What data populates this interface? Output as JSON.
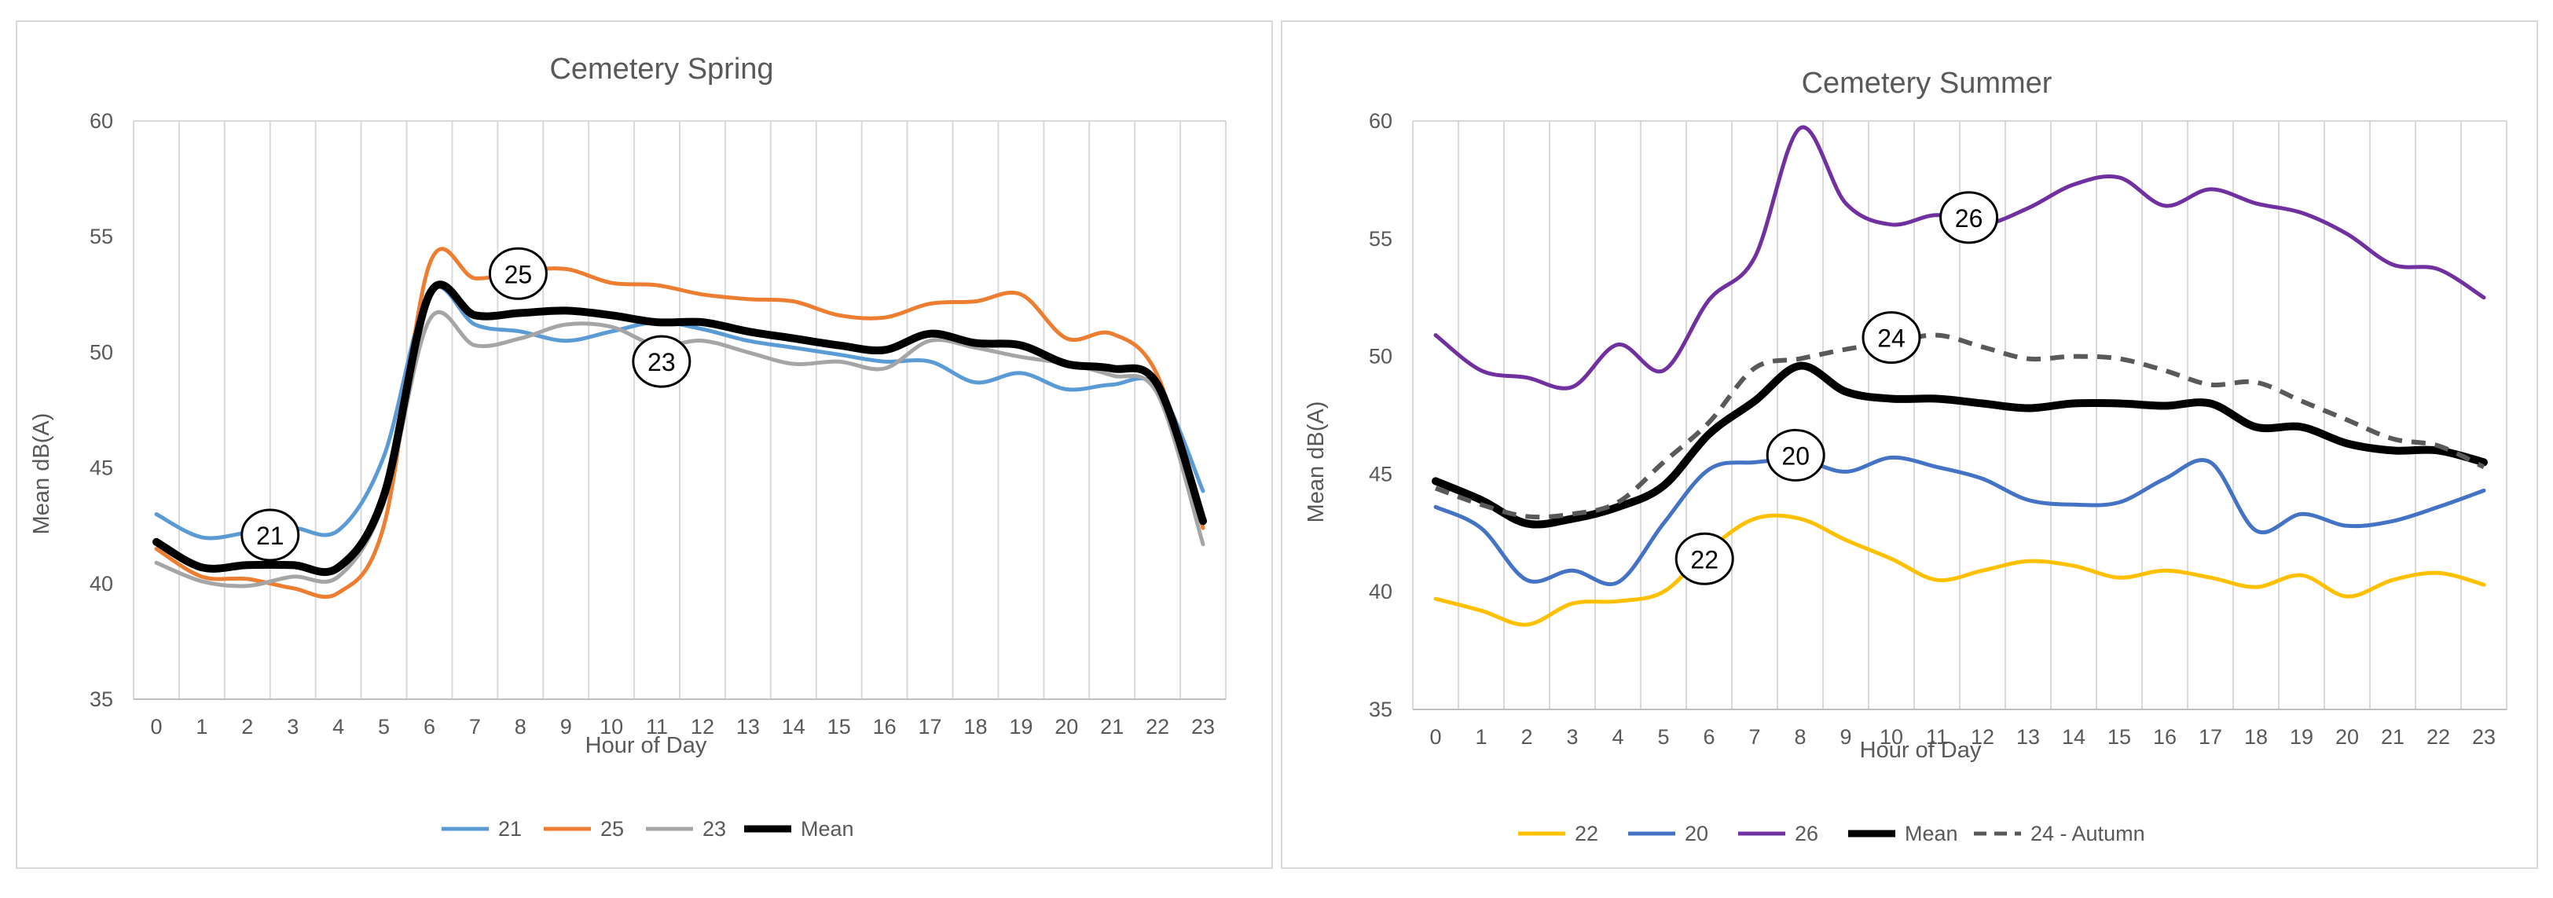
{
  "chart_data": [
    {
      "type": "line",
      "title": "Cemetery Spring",
      "xlabel": "Hour of Day",
      "ylabel": "Mean dB(A)",
      "ylim": [
        35,
        60
      ],
      "yticks": [
        35,
        40,
        45,
        50,
        55,
        60
      ],
      "x": [
        0,
        1,
        2,
        3,
        4,
        5,
        6,
        7,
        8,
        9,
        10,
        11,
        12,
        13,
        14,
        15,
        16,
        17,
        18,
        19,
        20,
        21,
        22,
        23
      ],
      "grid": "vertical",
      "legend_position": "bottom",
      "series": [
        {
          "name": "21",
          "color": "#5b9bd5",
          "dash": false,
          "width": 5,
          "values": [
            43.0,
            42.0,
            42.2,
            42.4,
            42.3,
            45.5,
            52.6,
            51.2,
            50.9,
            50.5,
            50.9,
            51.3,
            51.0,
            50.5,
            50.2,
            49.9,
            49.6,
            49.6,
            48.7,
            49.1,
            48.4,
            48.6,
            48.5,
            44.0
          ]
        },
        {
          "name": "25",
          "color": "#ed7d31",
          "dash": false,
          "width": 5,
          "values": [
            41.5,
            40.3,
            40.2,
            39.8,
            39.6,
            42.5,
            53.8,
            53.2,
            53.5,
            53.6,
            53.0,
            52.9,
            52.5,
            52.3,
            52.2,
            51.6,
            51.5,
            52.1,
            52.2,
            52.5,
            50.6,
            50.8,
            49.0,
            42.4
          ]
        },
        {
          "name": "23",
          "color": "#a5a5a5",
          "dash": false,
          "width": 5,
          "values": [
            40.9,
            40.1,
            39.9,
            40.3,
            40.3,
            43.5,
            51.4,
            50.3,
            50.6,
            51.2,
            51.1,
            50.3,
            50.5,
            50.0,
            49.5,
            49.6,
            49.3,
            50.5,
            50.2,
            49.8,
            49.5,
            49.0,
            48.2,
            41.7
          ]
        },
        {
          "name": "Mean",
          "color": "#000000",
          "dash": false,
          "width": 10,
          "values": [
            41.8,
            40.7,
            40.8,
            40.8,
            40.7,
            43.8,
            52.5,
            51.6,
            51.7,
            51.8,
            51.6,
            51.3,
            51.3,
            50.9,
            50.6,
            50.3,
            50.1,
            50.8,
            50.4,
            50.3,
            49.5,
            49.3,
            48.6,
            42.7
          ]
        }
      ],
      "annotations": [
        {
          "label": "21",
          "x": 2.5,
          "y": 42.1
        },
        {
          "label": "25",
          "x": 7.95,
          "y": 53.4
        },
        {
          "label": "23",
          "x": 11.1,
          "y": 49.6
        }
      ]
    },
    {
      "type": "line",
      "title": "Cemetery Summer",
      "xlabel": "Hour of Day",
      "ylabel": "Mean dB(A)",
      "ylim": [
        35,
        60
      ],
      "yticks": [
        35,
        40,
        45,
        50,
        55,
        60
      ],
      "x": [
        0,
        1,
        2,
        3,
        4,
        5,
        6,
        7,
        8,
        9,
        10,
        11,
        12,
        13,
        14,
        15,
        16,
        17,
        18,
        19,
        20,
        21,
        22,
        23
      ],
      "grid": "vertical",
      "legend_position": "bottom",
      "series": [
        {
          "name": "22",
          "color": "#ffc000",
          "dash": false,
          "width": 5,
          "values": [
            39.7,
            39.2,
            38.6,
            39.5,
            39.6,
            40.0,
            41.8,
            43.1,
            43.1,
            42.2,
            41.4,
            40.5,
            40.9,
            41.3,
            41.1,
            40.6,
            40.9,
            40.6,
            40.2,
            40.7,
            39.8,
            40.5,
            40.8,
            40.3
          ]
        },
        {
          "name": "20",
          "color": "#4472c4",
          "dash": false,
          "width": 5,
          "values": [
            43.6,
            42.7,
            40.5,
            40.9,
            40.4,
            42.9,
            45.2,
            45.5,
            45.6,
            45.1,
            45.7,
            45.3,
            44.8,
            43.9,
            43.7,
            43.8,
            44.8,
            45.5,
            42.6,
            43.3,
            42.8,
            43.0,
            43.6,
            44.3
          ]
        },
        {
          "name": "26",
          "color": "#7030a0",
          "dash": false,
          "width": 5,
          "values": [
            50.9,
            49.4,
            49.1,
            48.7,
            50.5,
            49.4,
            52.4,
            54.2,
            59.7,
            56.5,
            55.6,
            56.0,
            55.6,
            56.3,
            57.3,
            57.6,
            56.4,
            57.1,
            56.5,
            56.1,
            55.2,
            53.9,
            53.7,
            52.5
          ]
        },
        {
          "name": "Mean",
          "color": "#000000",
          "dash": false,
          "width": 10,
          "values": [
            44.7,
            43.9,
            42.9,
            43.1,
            43.6,
            44.5,
            46.7,
            48.1,
            49.6,
            48.5,
            48.2,
            48.2,
            48.0,
            47.8,
            48.0,
            48.0,
            47.9,
            48.0,
            47.0,
            47.0,
            46.3,
            46.0,
            46.0,
            45.5
          ]
        },
        {
          "name": "24 - Autumn",
          "color": "#595959",
          "dash": true,
          "width": 6,
          "values": [
            44.4,
            43.7,
            43.2,
            43.3,
            43.8,
            45.5,
            47.2,
            49.5,
            49.9,
            50.3,
            50.6,
            50.9,
            50.4,
            49.9,
            50.0,
            49.9,
            49.4,
            48.8,
            48.9,
            48.1,
            47.3,
            46.5,
            46.2,
            45.3
          ]
        }
      ],
      "annotations": [
        {
          "label": "26",
          "x": 11.7,
          "y": 55.9
        },
        {
          "label": "24",
          "x": 10.0,
          "y": 50.8
        },
        {
          "label": "20",
          "x": 7.9,
          "y": 45.8
        },
        {
          "label": "22",
          "x": 5.9,
          "y": 41.4
        }
      ]
    }
  ]
}
